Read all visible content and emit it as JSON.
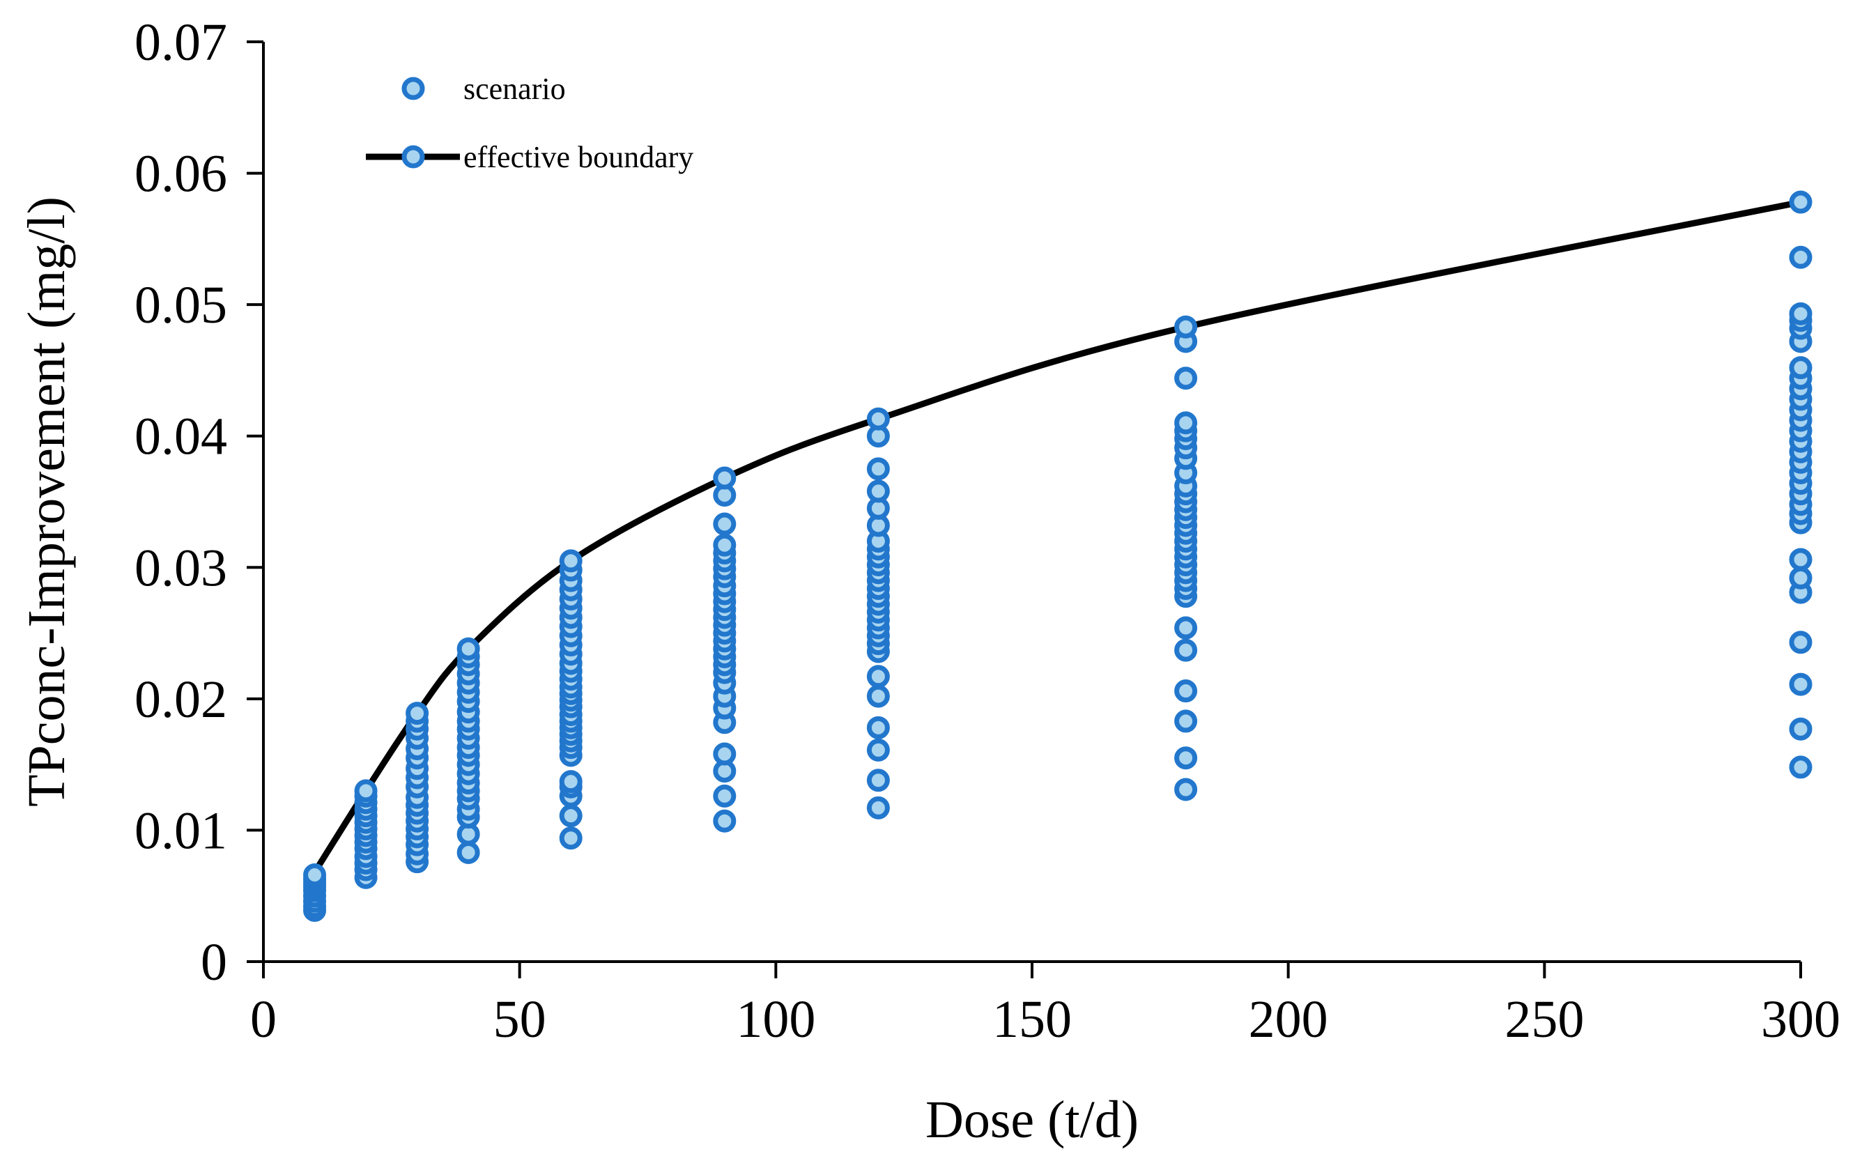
{
  "chart_data": {
    "type": "scatter",
    "title": "",
    "xlabel": "Dose (t/d)",
    "ylabel": "TPconc-Improvement (mg/l)",
    "xlim": [
      0,
      300
    ],
    "ylim": [
      0,
      0.07
    ],
    "x_ticks": [
      "0",
      "50",
      "100",
      "150",
      "200",
      "250",
      "300"
    ],
    "y_ticks": [
      "0",
      "0.01",
      "0.02",
      "0.03",
      "0.04",
      "0.05",
      "0.06",
      "0.07"
    ],
    "grid": false,
    "legend_position": "top-left",
    "legend": [
      "scenario",
      "effective boundary"
    ],
    "colors": {
      "marker_fill": "#a8d4f0",
      "marker_edge": "#2277cc",
      "line": "#000000"
    },
    "series": [
      {
        "name": "scenario",
        "type": "scatter",
        "points": [
          {
            "x": 10,
            "y": 0.0039
          },
          {
            "x": 10,
            "y": 0.0042
          },
          {
            "x": 10,
            "y": 0.0046
          },
          {
            "x": 10,
            "y": 0.005
          },
          {
            "x": 10,
            "y": 0.0054
          },
          {
            "x": 10,
            "y": 0.0057
          },
          {
            "x": 10,
            "y": 0.006
          },
          {
            "x": 10,
            "y": 0.0063
          },
          {
            "x": 10,
            "y": 0.0066
          },
          {
            "x": 20,
            "y": 0.0064
          },
          {
            "x": 20,
            "y": 0.007
          },
          {
            "x": 20,
            "y": 0.0075
          },
          {
            "x": 20,
            "y": 0.008
          },
          {
            "x": 20,
            "y": 0.0086
          },
          {
            "x": 20,
            "y": 0.0091
          },
          {
            "x": 20,
            "y": 0.0096
          },
          {
            "x": 20,
            "y": 0.0101
          },
          {
            "x": 20,
            "y": 0.0106
          },
          {
            "x": 20,
            "y": 0.0111
          },
          {
            "x": 20,
            "y": 0.0116
          },
          {
            "x": 20,
            "y": 0.0121
          },
          {
            "x": 20,
            "y": 0.0126
          },
          {
            "x": 20,
            "y": 0.013
          },
          {
            "x": 30,
            "y": 0.0076
          },
          {
            "x": 30,
            "y": 0.0082
          },
          {
            "x": 30,
            "y": 0.0089
          },
          {
            "x": 30,
            "y": 0.0095
          },
          {
            "x": 30,
            "y": 0.0101
          },
          {
            "x": 30,
            "y": 0.0107
          },
          {
            "x": 30,
            "y": 0.0113
          },
          {
            "x": 30,
            "y": 0.0119
          },
          {
            "x": 30,
            "y": 0.0125
          },
          {
            "x": 30,
            "y": 0.0133
          },
          {
            "x": 30,
            "y": 0.014
          },
          {
            "x": 30,
            "y": 0.0147
          },
          {
            "x": 30,
            "y": 0.0155
          },
          {
            "x": 30,
            "y": 0.0162
          },
          {
            "x": 30,
            "y": 0.017
          },
          {
            "x": 30,
            "y": 0.0177
          },
          {
            "x": 30,
            "y": 0.0183
          },
          {
            "x": 30,
            "y": 0.0189
          },
          {
            "x": 40,
            "y": 0.0083
          },
          {
            "x": 40,
            "y": 0.0097
          },
          {
            "x": 40,
            "y": 0.011
          },
          {
            "x": 40,
            "y": 0.0116
          },
          {
            "x": 40,
            "y": 0.0124
          },
          {
            "x": 40,
            "y": 0.013
          },
          {
            "x": 40,
            "y": 0.0136
          },
          {
            "x": 40,
            "y": 0.0143
          },
          {
            "x": 40,
            "y": 0.015
          },
          {
            "x": 40,
            "y": 0.0157
          },
          {
            "x": 40,
            "y": 0.0163
          },
          {
            "x": 40,
            "y": 0.017
          },
          {
            "x": 40,
            "y": 0.0177
          },
          {
            "x": 40,
            "y": 0.0183
          },
          {
            "x": 40,
            "y": 0.019
          },
          {
            "x": 40,
            "y": 0.0198
          },
          {
            "x": 40,
            "y": 0.0205
          },
          {
            "x": 40,
            "y": 0.0212
          },
          {
            "x": 40,
            "y": 0.0219
          },
          {
            "x": 40,
            "y": 0.0226
          },
          {
            "x": 40,
            "y": 0.0232
          },
          {
            "x": 40,
            "y": 0.0238
          },
          {
            "x": 60,
            "y": 0.0094
          },
          {
            "x": 60,
            "y": 0.0111
          },
          {
            "x": 60,
            "y": 0.0126
          },
          {
            "x": 60,
            "y": 0.0133
          },
          {
            "x": 60,
            "y": 0.0137
          },
          {
            "x": 60,
            "y": 0.0157
          },
          {
            "x": 60,
            "y": 0.0163
          },
          {
            "x": 60,
            "y": 0.0168
          },
          {
            "x": 60,
            "y": 0.0173
          },
          {
            "x": 60,
            "y": 0.0178
          },
          {
            "x": 60,
            "y": 0.0183
          },
          {
            "x": 60,
            "y": 0.0188
          },
          {
            "x": 60,
            "y": 0.0194
          },
          {
            "x": 60,
            "y": 0.0199
          },
          {
            "x": 60,
            "y": 0.0204
          },
          {
            "x": 60,
            "y": 0.0209
          },
          {
            "x": 60,
            "y": 0.0215
          },
          {
            "x": 60,
            "y": 0.0221
          },
          {
            "x": 60,
            "y": 0.0227
          },
          {
            "x": 60,
            "y": 0.0234
          },
          {
            "x": 60,
            "y": 0.0241
          },
          {
            "x": 60,
            "y": 0.0248
          },
          {
            "x": 60,
            "y": 0.0255
          },
          {
            "x": 60,
            "y": 0.0262
          },
          {
            "x": 60,
            "y": 0.0269
          },
          {
            "x": 60,
            "y": 0.0276
          },
          {
            "x": 60,
            "y": 0.0283
          },
          {
            "x": 60,
            "y": 0.029
          },
          {
            "x": 60,
            "y": 0.0298
          },
          {
            "x": 60,
            "y": 0.0305
          },
          {
            "x": 90,
            "y": 0.0107
          },
          {
            "x": 90,
            "y": 0.0126
          },
          {
            "x": 90,
            "y": 0.0145
          },
          {
            "x": 90,
            "y": 0.0158
          },
          {
            "x": 90,
            "y": 0.0182
          },
          {
            "x": 90,
            "y": 0.0193
          },
          {
            "x": 90,
            "y": 0.0202
          },
          {
            "x": 90,
            "y": 0.0212
          },
          {
            "x": 90,
            "y": 0.022
          },
          {
            "x": 90,
            "y": 0.0226
          },
          {
            "x": 90,
            "y": 0.0232
          },
          {
            "x": 90,
            "y": 0.0238
          },
          {
            "x": 90,
            "y": 0.0244
          },
          {
            "x": 90,
            "y": 0.025
          },
          {
            "x": 90,
            "y": 0.0256
          },
          {
            "x": 90,
            "y": 0.0262
          },
          {
            "x": 90,
            "y": 0.0268
          },
          {
            "x": 90,
            "y": 0.0274
          },
          {
            "x": 90,
            "y": 0.028
          },
          {
            "x": 90,
            "y": 0.0286
          },
          {
            "x": 90,
            "y": 0.0293
          },
          {
            "x": 90,
            "y": 0.0299
          },
          {
            "x": 90,
            "y": 0.0305
          },
          {
            "x": 90,
            "y": 0.0311
          },
          {
            "x": 90,
            "y": 0.0317
          },
          {
            "x": 90,
            "y": 0.0333
          },
          {
            "x": 90,
            "y": 0.0355
          },
          {
            "x": 90,
            "y": 0.0368
          },
          {
            "x": 120,
            "y": 0.0117
          },
          {
            "x": 120,
            "y": 0.0138
          },
          {
            "x": 120,
            "y": 0.0161
          },
          {
            "x": 120,
            "y": 0.0178
          },
          {
            "x": 120,
            "y": 0.0202
          },
          {
            "x": 120,
            "y": 0.0217
          },
          {
            "x": 120,
            "y": 0.0236
          },
          {
            "x": 120,
            "y": 0.0242
          },
          {
            "x": 120,
            "y": 0.0248
          },
          {
            "x": 120,
            "y": 0.0254
          },
          {
            "x": 120,
            "y": 0.026
          },
          {
            "x": 120,
            "y": 0.0266
          },
          {
            "x": 120,
            "y": 0.0272
          },
          {
            "x": 120,
            "y": 0.0278
          },
          {
            "x": 120,
            "y": 0.0284
          },
          {
            "x": 120,
            "y": 0.029
          },
          {
            "x": 120,
            "y": 0.0296
          },
          {
            "x": 120,
            "y": 0.0302
          },
          {
            "x": 120,
            "y": 0.0308
          },
          {
            "x": 120,
            "y": 0.0314
          },
          {
            "x": 120,
            "y": 0.032
          },
          {
            "x": 120,
            "y": 0.0332
          },
          {
            "x": 120,
            "y": 0.0345
          },
          {
            "x": 120,
            "y": 0.0358
          },
          {
            "x": 120,
            "y": 0.0375
          },
          {
            "x": 120,
            "y": 0.04
          },
          {
            "x": 120,
            "y": 0.0413
          },
          {
            "x": 180,
            "y": 0.0131
          },
          {
            "x": 180,
            "y": 0.0155
          },
          {
            "x": 180,
            "y": 0.0183
          },
          {
            "x": 180,
            "y": 0.0206
          },
          {
            "x": 180,
            "y": 0.0237
          },
          {
            "x": 180,
            "y": 0.0254
          },
          {
            "x": 180,
            "y": 0.0278
          },
          {
            "x": 180,
            "y": 0.0284
          },
          {
            "x": 180,
            "y": 0.029
          },
          {
            "x": 180,
            "y": 0.0296
          },
          {
            "x": 180,
            "y": 0.0302
          },
          {
            "x": 180,
            "y": 0.0308
          },
          {
            "x": 180,
            "y": 0.0314
          },
          {
            "x": 180,
            "y": 0.032
          },
          {
            "x": 180,
            "y": 0.0326
          },
          {
            "x": 180,
            "y": 0.0332
          },
          {
            "x": 180,
            "y": 0.0338
          },
          {
            "x": 180,
            "y": 0.0344
          },
          {
            "x": 180,
            "y": 0.035
          },
          {
            "x": 180,
            "y": 0.0356
          },
          {
            "x": 180,
            "y": 0.0362
          },
          {
            "x": 180,
            "y": 0.0372
          },
          {
            "x": 180,
            "y": 0.0383
          },
          {
            "x": 180,
            "y": 0.0391
          },
          {
            "x": 180,
            "y": 0.0398
          },
          {
            "x": 180,
            "y": 0.0404
          },
          {
            "x": 180,
            "y": 0.041
          },
          {
            "x": 180,
            "y": 0.0444
          },
          {
            "x": 180,
            "y": 0.0472
          },
          {
            "x": 180,
            "y": 0.0483
          },
          {
            "x": 300,
            "y": 0.0148
          },
          {
            "x": 300,
            "y": 0.0177
          },
          {
            "x": 300,
            "y": 0.0211
          },
          {
            "x": 300,
            "y": 0.0243
          },
          {
            "x": 300,
            "y": 0.0281
          },
          {
            "x": 300,
            "y": 0.0292
          },
          {
            "x": 300,
            "y": 0.0306
          },
          {
            "x": 300,
            "y": 0.0334
          },
          {
            "x": 300,
            "y": 0.0341
          },
          {
            "x": 300,
            "y": 0.0348
          },
          {
            "x": 300,
            "y": 0.0356
          },
          {
            "x": 300,
            "y": 0.0364
          },
          {
            "x": 300,
            "y": 0.0372
          },
          {
            "x": 300,
            "y": 0.038
          },
          {
            "x": 300,
            "y": 0.0388
          },
          {
            "x": 300,
            "y": 0.0396
          },
          {
            "x": 300,
            "y": 0.0404
          },
          {
            "x": 300,
            "y": 0.0412
          },
          {
            "x": 300,
            "y": 0.042
          },
          {
            "x": 300,
            "y": 0.0428
          },
          {
            "x": 300,
            "y": 0.0436
          },
          {
            "x": 300,
            "y": 0.0444
          },
          {
            "x": 300,
            "y": 0.0452
          },
          {
            "x": 300,
            "y": 0.0472
          },
          {
            "x": 300,
            "y": 0.0482
          },
          {
            "x": 300,
            "y": 0.0488
          },
          {
            "x": 300,
            "y": 0.0493
          },
          {
            "x": 300,
            "y": 0.0536
          },
          {
            "x": 300,
            "y": 0.0578
          }
        ]
      },
      {
        "name": "effective boundary",
        "type": "line",
        "x": [
          10,
          20,
          30,
          40,
          60,
          90,
          120,
          180,
          300
        ],
        "y": [
          0.0068,
          0.013,
          0.0189,
          0.0238,
          0.0305,
          0.0368,
          0.0413,
          0.0483,
          0.0578
        ]
      }
    ]
  }
}
